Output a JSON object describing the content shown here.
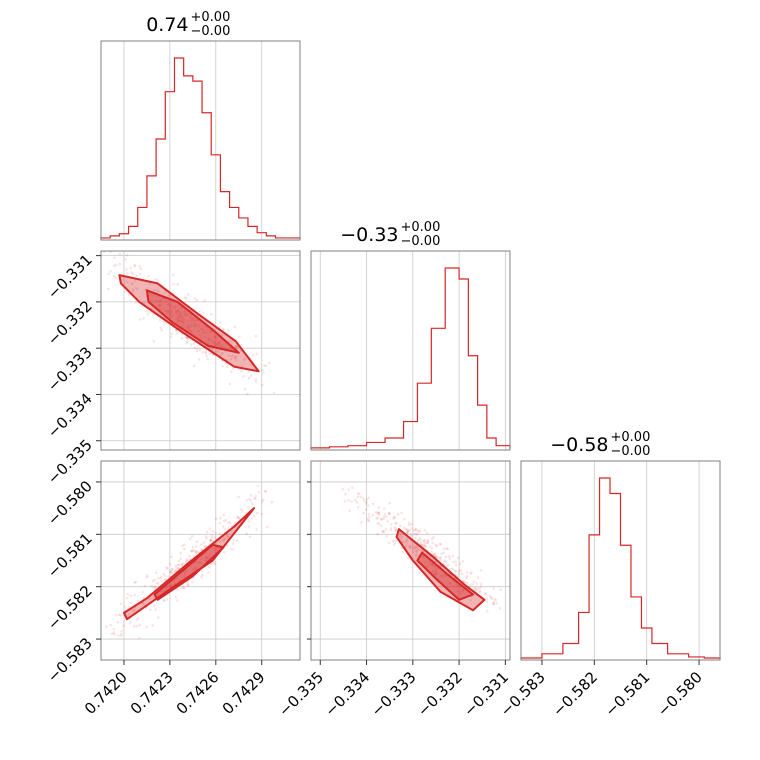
{
  "colors": {
    "accent": "#d62728",
    "grid": "#c8c8c8",
    "frame": "#808080"
  },
  "chart_data": {
    "type": "corner",
    "grid": true,
    "parameters": [
      {
        "title": {
          "main": "0.74",
          "sup": "+0.00",
          "sub": "−0.00"
        },
        "range": [
          0.74185,
          0.74315
        ],
        "ticks": [
          0.742,
          0.7423,
          0.7426,
          0.7429
        ],
        "tick_labels": [
          "0.7420",
          "0.7423",
          "0.7426",
          "0.7429"
        ],
        "hist": {
          "bins": [
            0.74185,
            0.74191,
            0.74197,
            0.74203,
            0.74209,
            0.74215,
            0.74221,
            0.74227,
            0.74233,
            0.74239,
            0.74245,
            0.74251,
            0.74257,
            0.74263,
            0.74269,
            0.74275,
            0.74281,
            0.74287,
            0.74293,
            0.74299,
            0.74305,
            0.74315
          ],
          "counts": [
            1,
            3,
            5,
            12,
            30,
            60,
            95,
            140,
            172,
            155,
            150,
            120,
            80,
            45,
            30,
            20,
            12,
            6,
            3,
            1,
            1
          ]
        }
      },
      {
        "title": {
          "main": "−0.33",
          "sup": "+0.00",
          "sub": "−0.00"
        },
        "range": [
          -0.3352,
          -0.3309
        ],
        "ticks": [
          -0.335,
          -0.334,
          -0.333,
          -0.332,
          -0.331
        ],
        "tick_labels": [
          "−0.335",
          "−0.334",
          "−0.333",
          "−0.332",
          "−0.331"
        ],
        "hist": {
          "bins": [
            -0.3352,
            -0.3348,
            -0.3344,
            -0.334,
            -0.3336,
            -0.3332,
            -0.3329,
            -0.3326,
            -0.3323,
            -0.332,
            -0.3318,
            -0.3316,
            -0.3314,
            -0.3312,
            -0.3309
          ],
          "counts": [
            1,
            2,
            3,
            6,
            10,
            25,
            60,
            110,
            165,
            155,
            85,
            40,
            10,
            3
          ]
        }
      },
      {
        "title": {
          "main": "−0.58",
          "sup": "+0.00",
          "sub": "−0.00"
        },
        "range": [
          -0.5834,
          -0.5796
        ],
        "ticks": [
          -0.583,
          -0.582,
          -0.581,
          -0.58
        ],
        "tick_labels": [
          "−0.583",
          "−0.582",
          "−0.581",
          "−0.580"
        ],
        "hist": {
          "bins": [
            -0.5834,
            -0.583,
            -0.5826,
            -0.5823,
            -0.5821,
            -0.5819,
            -0.5817,
            -0.5815,
            -0.5813,
            -0.5811,
            -0.5809,
            -0.5806,
            -0.5802,
            -0.5799,
            -0.5796
          ],
          "counts": [
            1,
            5,
            15,
            45,
            120,
            175,
            160,
            110,
            60,
            30,
            15,
            5,
            2,
            1
          ]
        }
      }
    ],
    "scatter": [
      {
        "x_param": 0,
        "y_param": 1,
        "trend": {
          "from": [
            0.742,
            -0.33145
          ],
          "to": [
            0.74285,
            -0.3335
          ],
          "spread_x": 4e-05,
          "spread_y": 0.00025
        },
        "contour_polygons": [
          [
            [
              0.74197,
              -0.33142
            ],
            [
              0.74222,
              -0.3316
            ],
            [
              0.74248,
              -0.33225
            ],
            [
              0.74273,
              -0.33285
            ],
            [
              0.74288,
              -0.3335
            ],
            [
              0.74272,
              -0.3334
            ],
            [
              0.74238,
              -0.33265
            ],
            [
              0.7421,
              -0.332
            ],
            [
              0.74198,
              -0.3316
            ]
          ],
          [
            [
              0.74215,
              -0.33175
            ],
            [
              0.74235,
              -0.332
            ],
            [
              0.74258,
              -0.3326
            ],
            [
              0.74275,
              -0.3331
            ],
            [
              0.74255,
              -0.33295
            ],
            [
              0.74232,
              -0.33245
            ],
            [
              0.74216,
              -0.332
            ]
          ]
        ]
      },
      {
        "x_param": 0,
        "y_param": 2,
        "trend": {
          "from": [
            0.742,
            -0.58265
          ],
          "to": [
            0.74285,
            -0.58055
          ],
          "spread_x": 4e-05,
          "spread_y": 0.00018
        },
        "contour_polygons": [
          [
            [
              0.74202,
              -0.58262
            ],
            [
              0.7423,
              -0.58205
            ],
            [
              0.74258,
              -0.5815
            ],
            [
              0.74285,
              -0.5805
            ],
            [
              0.74272,
              -0.58085
            ],
            [
              0.7424,
              -0.5816
            ],
            [
              0.74215,
              -0.58222
            ],
            [
              0.742,
              -0.5825
            ]
          ],
          [
            [
              0.74222,
              -0.58225
            ],
            [
              0.74245,
              -0.5818
            ],
            [
              0.74265,
              -0.58125
            ],
            [
              0.74258,
              -0.5812
            ],
            [
              0.74238,
              -0.5817
            ],
            [
              0.7422,
              -0.58215
            ]
          ]
        ]
      },
      {
        "x_param": 1,
        "y_param": 2,
        "trend": {
          "from": [
            -0.334,
            -0.58045
          ],
          "to": [
            -0.33145,
            -0.58225
          ],
          "spread_x": 0.0002,
          "spread_y": 0.0001
        },
        "contour_polygons": [
          [
            [
              -0.3333,
              -0.5809
            ],
            [
              -0.3326,
              -0.5814
            ],
            [
              -0.3319,
              -0.58195
            ],
            [
              -0.33145,
              -0.58225
            ],
            [
              -0.3317,
              -0.58245
            ],
            [
              -0.3324,
              -0.5821
            ],
            [
              -0.333,
              -0.5815
            ],
            [
              -0.33335,
              -0.58105
            ]
          ],
          [
            [
              -0.3328,
              -0.58135
            ],
            [
              -0.3322,
              -0.5818
            ],
            [
              -0.3317,
              -0.58215
            ],
            [
              -0.332,
              -0.58225
            ],
            [
              -0.3325,
              -0.58185
            ],
            [
              -0.3329,
              -0.5815
            ]
          ]
        ]
      }
    ]
  }
}
